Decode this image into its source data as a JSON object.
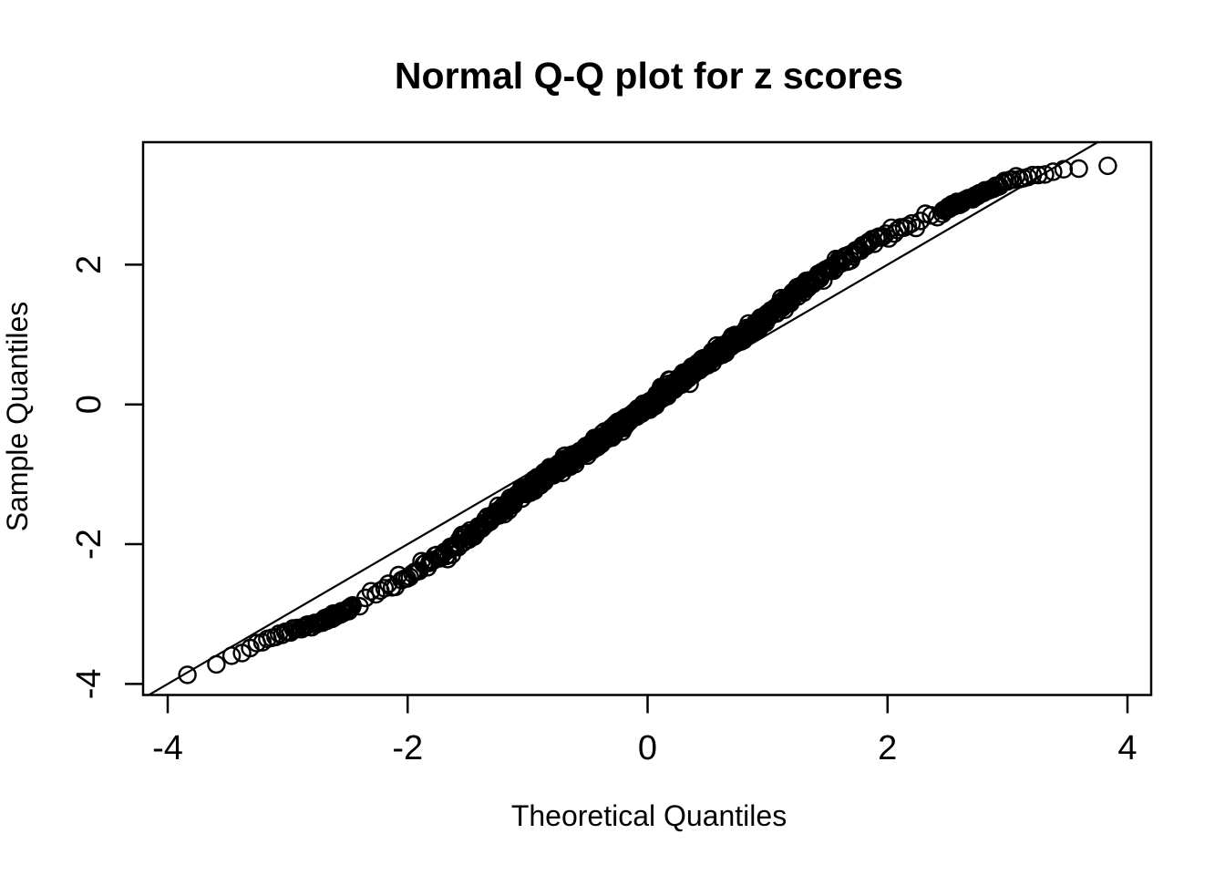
{
  "page": {
    "background_color": "#ffffff"
  },
  "chart_data": {
    "type": "scatter",
    "title": "Normal Q-Q plot for z scores",
    "xlabel": "Theoretical Quantiles",
    "ylabel": "Sample Quantiles",
    "x_ticks": [
      -4,
      -2,
      0,
      2,
      4
    ],
    "x_tick_labels": [
      "-4",
      "-2",
      "0",
      "2",
      "4"
    ],
    "y_ticks": [
      -4,
      -2,
      0,
      2
    ],
    "y_tick_labels": [
      "-4",
      "-2",
      "0",
      "2"
    ],
    "xlim": [
      -4.21,
      4.2
    ],
    "ylim": [
      -4.16,
      3.75
    ],
    "grid": false,
    "legend": null,
    "marker": "open-circle",
    "colors": {
      "points": "#000000",
      "reference_line": "#000000",
      "text": "#000000",
      "background": "#ffffff"
    },
    "reference_line": {
      "type": "identity",
      "slope": 1,
      "intercept": 0
    },
    "n_points": 10000,
    "qq_curve_deviation": [
      [
        -4.3,
        0.1
      ],
      [
        -3.95,
        0.04
      ],
      [
        -3.8,
        -0.03
      ],
      [
        -3.6,
        -0.11
      ],
      [
        -3.45,
        -0.12
      ],
      [
        -3.3,
        -0.16
      ],
      [
        -3.1,
        -0.21
      ],
      [
        -2.95,
        -0.28
      ],
      [
        -2.8,
        -0.36
      ],
      [
        -2.6,
        -0.42
      ],
      [
        -2.3,
        -0.45
      ],
      [
        -2.0,
        -0.46
      ],
      [
        -1.7,
        -0.44
      ],
      [
        -1.4,
        -0.37
      ],
      [
        -1.1,
        -0.26
      ],
      [
        -0.8,
        -0.17
      ],
      [
        -0.5,
        -0.14
      ],
      [
        -0.3,
        -0.1
      ],
      [
        -0.1,
        -0.05
      ],
      [
        0.05,
        0.0
      ],
      [
        0.3,
        0.07
      ],
      [
        0.5,
        0.13
      ],
      [
        0.8,
        0.2
      ],
      [
        1.1,
        0.3
      ],
      [
        1.4,
        0.4
      ],
      [
        1.7,
        0.455
      ],
      [
        1.95,
        0.47
      ],
      [
        2.2,
        0.38
      ],
      [
        2.5,
        0.3
      ],
      [
        2.8,
        0.24
      ],
      [
        3.0,
        0.2
      ],
      [
        3.2,
        0.08
      ],
      [
        3.4,
        -0.05
      ],
      [
        3.55,
        -0.17
      ],
      [
        3.7,
        -0.3
      ],
      [
        3.9,
        -0.44
      ],
      [
        4.3,
        -0.62
      ]
    ],
    "visible_tail_points": {
      "left": [
        [
          -3.9,
          -3.86
        ],
        [
          -3.61,
          -3.74
        ],
        [
          -3.49,
          -3.57
        ],
        [
          -3.42,
          -3.55
        ],
        [
          -3.35,
          -3.5
        ],
        [
          -3.28,
          -3.48
        ],
        [
          -3.22,
          -3.47
        ],
        [
          -3.16,
          -3.44
        ]
      ],
      "right": [
        [
          2.96,
          3.17
        ],
        [
          3.05,
          3.22
        ],
        [
          3.15,
          3.27
        ],
        [
          3.26,
          3.31
        ],
        [
          3.33,
          3.33
        ],
        [
          3.4,
          3.34
        ],
        [
          3.48,
          3.36
        ],
        [
          3.61,
          3.39
        ],
        [
          3.89,
          3.43
        ]
      ]
    },
    "render": {
      "subsample_step": 12,
      "full_tail_count": 70,
      "noise_sd": 0.04,
      "tail_noise_sd": 0.018,
      "seed": 11
    }
  }
}
